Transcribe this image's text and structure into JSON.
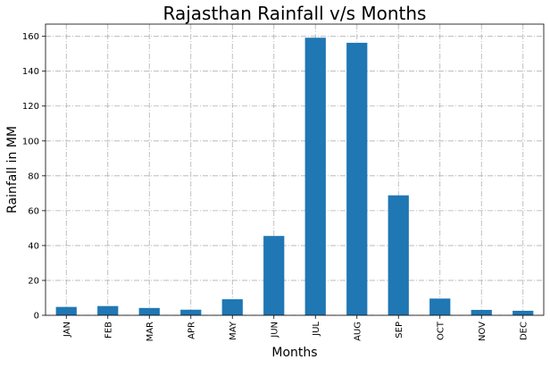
{
  "chart_data": {
    "type": "bar",
    "title": "Rajasthan Rainfall v/s Months",
    "xlabel": "Months",
    "ylabel": "Rainfall in MM",
    "categories": [
      "JAN",
      "FEB",
      "MAR",
      "APR",
      "MAY",
      "JUN",
      "JUL",
      "AUG",
      "SEP",
      "OCT",
      "NOV",
      "DEC"
    ],
    "values": [
      4.8,
      5.3,
      4.2,
      3.2,
      9.2,
      45.5,
      159.2,
      156.3,
      68.8,
      9.6,
      3.1,
      2.6
    ],
    "ylim": [
      0,
      167
    ],
    "yticks": [
      0,
      20,
      40,
      60,
      80,
      100,
      120,
      140,
      160
    ],
    "grid": true,
    "bar_color": "#1f77b4",
    "grid_color": "#b0b0b0"
  }
}
